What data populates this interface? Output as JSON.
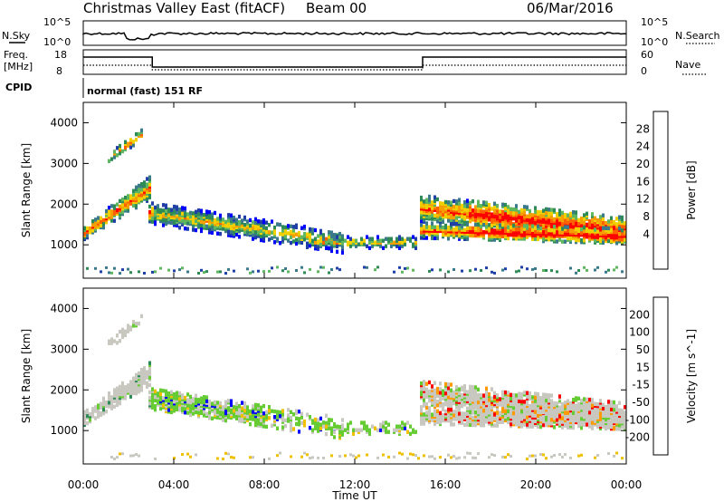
{
  "header": {
    "station": "Christmas Valley East (fitACF)",
    "beam": "Beam 00",
    "date": "06/Mar/2016"
  },
  "top_panels": {
    "nsky_label": "N.Sky",
    "nsearch_label": "N.Search",
    "nsky_ticks": [
      "10^5",
      "10^0"
    ],
    "nsearch_ticks": [
      "10^5",
      "10^0"
    ],
    "freq_label_line1": "Freq.",
    "freq_label_line2": "[MHz]",
    "freq_ticks": [
      "18",
      "8"
    ],
    "nave_label": "Nave",
    "nave_ticks": [
      "60",
      "0"
    ],
    "cpid_label": "CPID",
    "cpid_text": "normal (fast) 151 RF"
  },
  "colors": {
    "power_scale": [
      "#0000ff",
      "#2040a8",
      "#3a7a8a",
      "#2e8b57",
      "#5fb85f",
      "#f0d000",
      "#f5a000",
      "#ff6000",
      "#ff0000"
    ],
    "velocity_scale": [
      "#0000ff",
      "#3050b0",
      "#2e8b57",
      "#66cc33",
      "#c8c8c0",
      "#f0c000",
      "#ff9900",
      "#ff5500",
      "#ff0000"
    ]
  },
  "chart_data": [
    {
      "type": "heatmap",
      "title": "",
      "ylabel": "Slant Range [km]",
      "xlabel": "",
      "colorbar_label": "Power [dB]",
      "colorbar_ticks": [
        "28",
        "24",
        "20",
        "16",
        "12",
        "8",
        "4"
      ],
      "x_ticks": [
        "00:00",
        "04:00",
        "08:00",
        "12:00",
        "16:00",
        "20:00",
        "00:00"
      ],
      "y_ticks": [
        "4000",
        "3000",
        "2000",
        "1000"
      ],
      "ylim": [
        180,
        4500
      ],
      "xlim_hours": [
        0,
        24
      ]
    },
    {
      "type": "heatmap",
      "title": "",
      "ylabel": "Slant Range [km]",
      "xlabel": "Time UT",
      "colorbar_label": "Velocity [m s^-1]",
      "colorbar_ticks": [
        "200",
        "100",
        "50",
        "15",
        "-15",
        "-50",
        "-100",
        "-200"
      ],
      "x_ticks": [
        "00:00",
        "04:00",
        "08:00",
        "12:00",
        "16:00",
        "20:00",
        "00:00"
      ],
      "y_ticks": [
        "4000",
        "3000",
        "2000",
        "1000"
      ],
      "ylim": [
        180,
        4500
      ],
      "xlim_hours": [
        0,
        24
      ]
    }
  ]
}
